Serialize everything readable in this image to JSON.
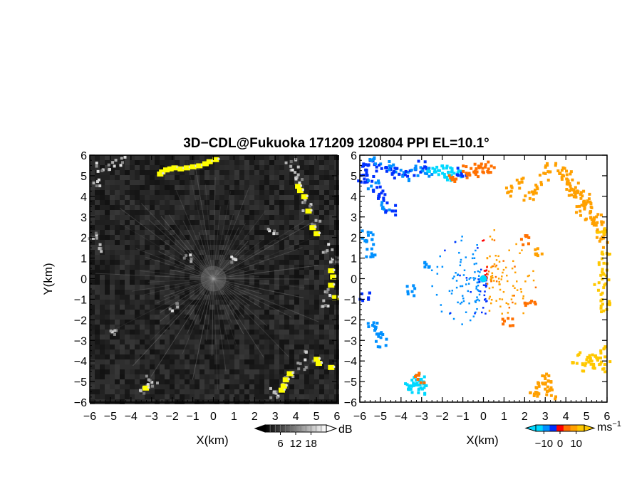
{
  "title": "3D−CDL@Fukuoka 171209 120804 PPI EL=10.1°",
  "chart_data": [
    {
      "type": "heatmap",
      "panel": "left",
      "field": "reflectivity",
      "xlabel": "X(km)",
      "ylabel": "Y(km)",
      "xlim": [
        -6,
        6
      ],
      "ylim": [
        -6,
        6
      ],
      "xticks": [
        "−6",
        "−5",
        "−4",
        "−3",
        "−2",
        "−1",
        "0",
        "1",
        "2",
        "3",
        "4",
        "5",
        "6"
      ],
      "yticks": [
        "−6",
        "−5",
        "−4",
        "−3",
        "−2",
        "−1",
        "0",
        "1",
        "2",
        "3",
        "4",
        "5",
        "6"
      ],
      "background_color": "#1e1e1e",
      "highlight_color": "#ffff00",
      "colorbar": {
        "unit": "dB",
        "ticks": [
          "6",
          "12",
          "18"
        ],
        "range": [
          0,
          24
        ],
        "colors": [
          "#000000",
          "#ffffff"
        ]
      },
      "highlight_cells": [
        [
          -2.5,
          5.2
        ],
        [
          -2.3,
          5.3
        ],
        [
          -2.1,
          5.35
        ],
        [
          -1.9,
          5.4
        ],
        [
          -1.6,
          5.35
        ],
        [
          -1.3,
          5.4
        ],
        [
          -1.0,
          5.45
        ],
        [
          -0.7,
          5.5
        ],
        [
          -0.4,
          5.6
        ],
        [
          -0.2,
          5.7
        ],
        [
          0.1,
          5.8
        ],
        [
          -2.6,
          5.1
        ],
        [
          4.1,
          4.5
        ],
        [
          4.2,
          4.3
        ],
        [
          4.4,
          4.0
        ],
        [
          4.6,
          3.3
        ],
        [
          4.8,
          2.5
        ],
        [
          5.0,
          2.2
        ],
        [
          5.7,
          0.4
        ],
        [
          5.8,
          0.1
        ],
        [
          5.9,
          -0.9
        ],
        [
          5.7,
          -0.3
        ],
        [
          5.0,
          -3.9
        ],
        [
          5.1,
          -4.1
        ],
        [
          5.7,
          -4.3
        ],
        [
          3.7,
          -4.6
        ],
        [
          3.5,
          -4.9
        ],
        [
          3.3,
          -5.4
        ],
        [
          3.4,
          -5.2
        ],
        [
          -3.3,
          -5.3
        ]
      ],
      "clutter_cells": [
        [
          -5.7,
          4.8
        ],
        [
          -5.5,
          5.5
        ],
        [
          -5.0,
          5.6
        ],
        [
          -4.6,
          5.8
        ],
        [
          -5.9,
          2.1
        ],
        [
          -5.6,
          1.6
        ],
        [
          -4.9,
          -2.5
        ],
        [
          -3.1,
          -4.9
        ],
        [
          -3.0,
          -5.1
        ],
        [
          -3.5,
          -5.4
        ],
        [
          3.7,
          5.7
        ],
        [
          3.9,
          5.3
        ],
        [
          4.0,
          4.9
        ],
        [
          4.3,
          3.9
        ],
        [
          4.5,
          3.6
        ],
        [
          4.9,
          2.8
        ],
        [
          5.5,
          1.5
        ],
        [
          5.7,
          1.0
        ],
        [
          5.6,
          -0.6
        ],
        [
          5.3,
          -1.2
        ],
        [
          2.9,
          -5.5
        ],
        [
          3.1,
          -5.3
        ],
        [
          3.6,
          -4.7
        ],
        [
          4.6,
          -3.7
        ],
        [
          4.2,
          -4.2
        ],
        [
          2.8,
          2.4
        ],
        [
          -1.3,
          1.1
        ],
        [
          0.8,
          0.9
        ],
        [
          -2.0,
          -1.3
        ]
      ]
    },
    {
      "type": "heatmap",
      "panel": "right",
      "field": "doppler_velocity",
      "xlabel": "X(km)",
      "xlim": [
        -6,
        6
      ],
      "ylim": [
        -6,
        6
      ],
      "xticks": [
        "−6",
        "−5",
        "−4",
        "−3",
        "−2",
        "−1",
        "0",
        "1",
        "2",
        "3",
        "4",
        "5",
        "6"
      ],
      "yticks": [
        "−6",
        "−5",
        "−4",
        "−3",
        "−2",
        "−1",
        "0",
        "1",
        "2",
        "3",
        "4",
        "5",
        "6"
      ],
      "colorbar": {
        "unit": "ms",
        "unit_sup": "−1",
        "ticks": [
          "−10",
          "0",
          "10"
        ],
        "range": [
          -15,
          15
        ],
        "colors": [
          "#00d8ff",
          "#0090ff",
          "#0030ff",
          "#ff0000",
          "#ff7000",
          "#ffa000",
          "#ffc800"
        ]
      },
      "cells": [
        [
          -5.8,
          5.4,
          -6
        ],
        [
          -5.6,
          5.6,
          -6
        ],
        [
          -5.3,
          5.7,
          -7
        ],
        [
          -5.0,
          5.4,
          -6
        ],
        [
          -4.7,
          5.3,
          -6
        ],
        [
          -4.5,
          5.5,
          -7
        ],
        [
          -4.2,
          5.2,
          -6
        ],
        [
          -3.9,
          5.1,
          -7
        ],
        [
          -3.6,
          5.2,
          -6
        ],
        [
          -3.3,
          5.3,
          -7
        ],
        [
          -3.1,
          5.5,
          -6
        ],
        [
          -2.8,
          5.2,
          -7
        ],
        [
          -5.9,
          5.0,
          -6
        ],
        [
          -5.6,
          4.9,
          -6
        ],
        [
          -5.4,
          4.6,
          -7
        ],
        [
          -5.2,
          4.3,
          -6
        ],
        [
          -5.0,
          4.0,
          -6
        ],
        [
          -4.8,
          3.6,
          -7
        ],
        [
          -4.6,
          3.4,
          -6
        ],
        [
          -5.7,
          2.2,
          -8
        ],
        [
          -5.6,
          1.7,
          -8
        ],
        [
          -5.5,
          1.4,
          -9
        ],
        [
          -2.5,
          5.3,
          -12
        ],
        [
          -2.2,
          5.2,
          -13
        ],
        [
          -1.9,
          5.3,
          -12
        ],
        [
          -1.7,
          5.1,
          -13
        ],
        [
          -1.4,
          5.2,
          -12
        ],
        [
          -1.1,
          5.3,
          -3
        ],
        [
          -0.8,
          5.3,
          3
        ],
        [
          -0.6,
          5.2,
          4
        ],
        [
          -0.3,
          5.4,
          4
        ],
        [
          0.0,
          5.5,
          3
        ],
        [
          0.3,
          5.5,
          4
        ],
        [
          -1.6,
          5.0,
          4
        ],
        [
          1.2,
          4.3,
          7
        ],
        [
          1.6,
          4.7,
          7
        ],
        [
          2.1,
          4.1,
          7
        ],
        [
          2.5,
          4.4,
          7
        ],
        [
          2.9,
          5.0,
          8
        ],
        [
          3.2,
          5.5,
          8
        ],
        [
          3.7,
          5.2,
          9
        ],
        [
          4.0,
          5.1,
          9
        ],
        [
          4.3,
          4.6,
          9
        ],
        [
          4.6,
          4.2,
          9
        ],
        [
          4.9,
          3.6,
          9
        ],
        [
          5.1,
          3.1,
          10
        ],
        [
          5.3,
          2.6,
          10
        ],
        [
          5.6,
          2.2,
          10
        ],
        [
          5.8,
          1.8,
          10
        ],
        [
          5.9,
          1.3,
          11
        ],
        [
          5.7,
          0.6,
          11
        ],
        [
          5.9,
          0.1,
          11
        ],
        [
          5.6,
          -0.4,
          11
        ],
        [
          5.8,
          -0.9,
          12
        ],
        [
          5.9,
          -1.3,
          12
        ],
        [
          4.9,
          3.9,
          10
        ],
        [
          5.3,
          3.3,
          10
        ],
        [
          5.5,
          2.9,
          10
        ],
        [
          5.7,
          2.4,
          11
        ],
        [
          3.9,
          4.9,
          9
        ],
        [
          4.1,
          4.3,
          9
        ],
        [
          4.4,
          4.1,
          10
        ],
        [
          4.7,
          3.4,
          10
        ],
        [
          5.1,
          -3.9,
          12
        ],
        [
          5.4,
          -3.7,
          12
        ],
        [
          5.6,
          -3.5,
          12
        ],
        [
          5.3,
          -4.1,
          12
        ],
        [
          5.0,
          -4.2,
          11
        ],
        [
          5.8,
          -4.2,
          11
        ],
        [
          3.0,
          -4.8,
          8
        ],
        [
          2.8,
          -5.0,
          8
        ],
        [
          3.1,
          -5.2,
          8
        ],
        [
          2.6,
          -5.4,
          8
        ],
        [
          3.2,
          -5.5,
          8
        ],
        [
          2.4,
          -5.3,
          7
        ],
        [
          4.5,
          -3.8,
          12
        ],
        [
          -3.3,
          -4.9,
          -12
        ],
        [
          -3.1,
          -5.0,
          -13
        ],
        [
          -3.2,
          -4.8,
          -12
        ],
        [
          -3.4,
          -5.2,
          -13
        ],
        [
          -3.6,
          -5.3,
          -12
        ],
        [
          -3.0,
          -5.3,
          -12
        ],
        [
          -3.1,
          -4.8,
          3
        ],
        [
          -5.4,
          -2.3,
          -7
        ],
        [
          -5.2,
          -2.5,
          -7
        ],
        [
          -5.0,
          -3.0,
          -8
        ],
        [
          -5.8,
          -0.8,
          -6
        ],
        [
          -3.5,
          -0.5,
          -8
        ],
        [
          -2.9,
          0.6,
          -8
        ],
        [
          2.6,
          1.3,
          7
        ],
        [
          1.9,
          1.9,
          6
        ],
        [
          1.1,
          -2.0,
          5
        ],
        [
          2.2,
          -1.2,
          6
        ]
      ]
    }
  ]
}
